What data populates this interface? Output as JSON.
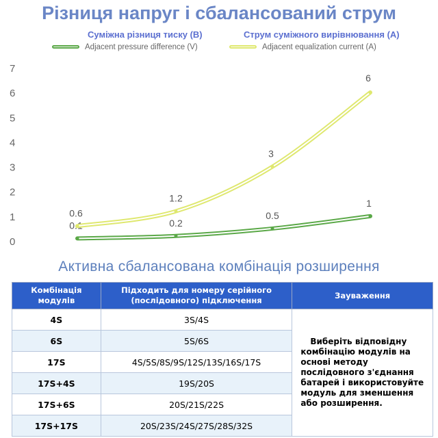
{
  "title": "Різниця напруг і сбалансований струм",
  "legend": [
    {
      "label_ua": "Суміжна різниця тиску (В)",
      "label_en": "Adjacent pressure difference (V)",
      "color": "#5aa847"
    },
    {
      "label_ua": "Струм суміжного вирівнювання (А)",
      "label_en": "Adjacent equalization current (A)",
      "color": "#dfe86f"
    }
  ],
  "chart_data": {
    "type": "line",
    "x": [
      1,
      2,
      3,
      4
    ],
    "ylim": [
      0,
      7
    ],
    "yticks": [
      "0",
      "1",
      "2",
      "3",
      "4",
      "5",
      "6",
      "7"
    ],
    "grid": false,
    "series": [
      {
        "name": "Adjacent pressure difference (V)",
        "values": [
          0.1,
          0.2,
          0.5,
          1
        ],
        "labels": [
          "0.1",
          "0.2",
          "0.5",
          "1"
        ],
        "color": "#5aa847"
      },
      {
        "name": "Adjacent equalization current (A)",
        "values": [
          0.6,
          1.2,
          3,
          6
        ],
        "labels": [
          "0.6",
          "1.2",
          "3",
          "6"
        ],
        "color": "#dfe86f"
      }
    ]
  },
  "subtitle": "Активна сбалансована комбінація розширення",
  "table": {
    "headers": [
      "Комбінація модулів",
      "Підходить для номеру серійного (послідовного) підключення",
      "Зауваження"
    ],
    "rows": [
      {
        "module": "4S",
        "series": "3S/4S"
      },
      {
        "module": "6S",
        "series": "5S/6S"
      },
      {
        "module": "17S",
        "series": "4S/5S/8S/9S/12S/13S/16S/17S"
      },
      {
        "module": "17S+4S",
        "series": "19S/20S"
      },
      {
        "module": "17S+6S",
        "series": "20S/21S/22S"
      },
      {
        "module": "17S+17S",
        "series": "20S/23S/24S/27S/28S/32S"
      }
    ],
    "note": "Виберіть відповідну комбінацію модулів на основі методу послідовного з'єднання батарей і використовуйте модуль для зменшення або розширення."
  }
}
